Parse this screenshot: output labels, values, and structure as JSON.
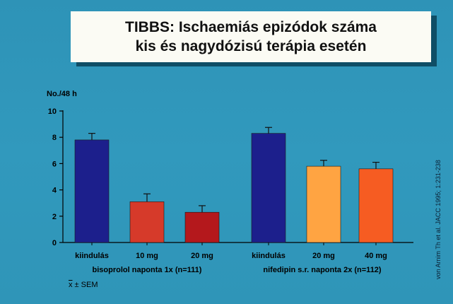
{
  "title": {
    "line1": "TIBBS: Ischaemiás epizódok száma",
    "line2": "kis és nagydózisú terápia esetén"
  },
  "chart_data": {
    "type": "bar",
    "ylabel": "No./48 h",
    "ylim": [
      0,
      10
    ],
    "yticks": [
      0,
      2,
      4,
      6,
      8,
      10
    ],
    "categories": [
      "kiindulás",
      "10 mg",
      "20 mg",
      "kiindulás",
      "20 mg",
      "40 mg"
    ],
    "values": [
      7.8,
      3.1,
      2.3,
      8.3,
      5.8,
      5.6
    ],
    "errors": [
      0.5,
      0.6,
      0.5,
      0.45,
      0.45,
      0.5
    ],
    "colors": [
      "#1c1f8c",
      "#d63a2a",
      "#b4181c",
      "#1c1f8c",
      "#ffa442",
      "#f65c22"
    ],
    "groups": [
      {
        "label": "bisoprolol naponta 1x (n=111)",
        "indices": [
          0,
          1,
          2
        ]
      },
      {
        "label": "nifedipin s.r. naponta 2x (n=112)",
        "indices": [
          3,
          4,
          5
        ]
      }
    ],
    "grid": false
  },
  "footnote": {
    "symbol": "x",
    "text": " ± SEM"
  },
  "source": "von Arnim Th et al. JACC 1995; 1:231-238"
}
